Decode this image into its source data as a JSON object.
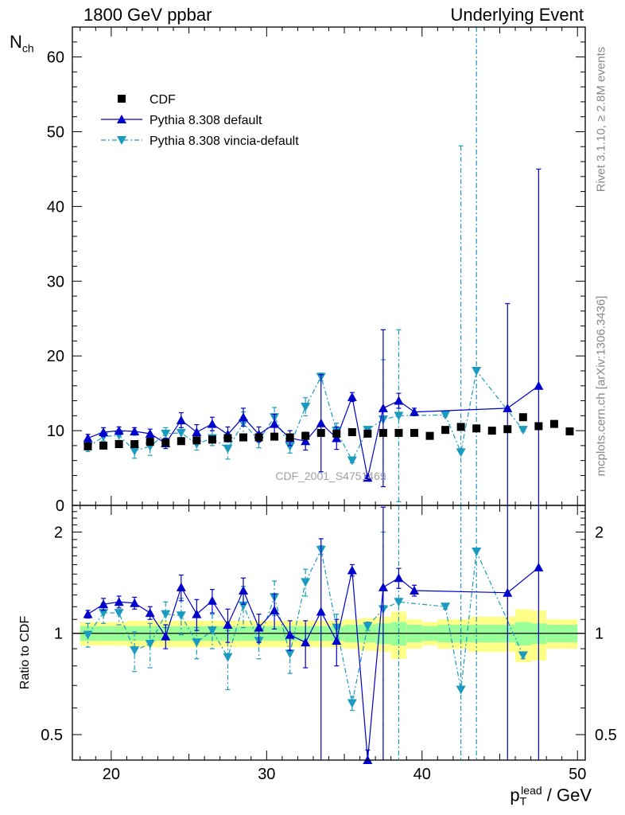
{
  "header": {
    "left": "1800 GeV ppbar",
    "right": "Underlying Event"
  },
  "side_text": {
    "rivet": "Rivet 3.1.10, ≥ 2.8M events",
    "mcplots": "mcplots.cern.ch [arXiv:1306.3436]"
  },
  "watermark": "CDF_2001_S4751469",
  "axis_text": {
    "top_ylabel_main": "N",
    "top_ylabel_sub": "ch",
    "bottom_ylabel": "Ratio to CDF",
    "xlabel": "p_T^lead / GeV"
  },
  "legend": [
    {
      "label": "CDF",
      "marker": "square",
      "color": "#000000"
    },
    {
      "label": "Pythia 8.308 default",
      "marker": "triangle-up",
      "color": "#0000cc",
      "line": "solid"
    },
    {
      "label": "Pythia 8.308 vincia-default",
      "marker": "triangle-down",
      "color": "#1a9bbf",
      "line": "dashdot"
    }
  ],
  "colors": {
    "cdf": "#000000",
    "default": "#0000cc",
    "vincia": "#1a9bbf",
    "band_inner": "#99ff99",
    "band_outer": "#ffff88"
  },
  "chart_data": [
    {
      "type": "scatter",
      "panel": "main",
      "xlim": [
        17.5,
        50.5
      ],
      "ylim": [
        0,
        64
      ],
      "yticks": [
        0,
        10,
        20,
        30,
        40,
        50,
        60
      ],
      "ylabel": "N_ch",
      "series": [
        {
          "name": "CDF",
          "x": [
            18.5,
            19.5,
            20.5,
            21.5,
            22.5,
            23.5,
            24.5,
            25.5,
            26.5,
            27.5,
            28.5,
            29.5,
            30.5,
            31.5,
            32.5,
            33.5,
            34.5,
            35.5,
            36.5,
            37.5,
            38.5,
            39.5,
            40.5,
            41.5,
            42.5,
            43.5,
            44.5,
            45.5,
            46.5,
            47.5,
            48.5,
            49.5
          ],
          "y": [
            7.9,
            8.0,
            8.2,
            8.2,
            8.5,
            8.4,
            8.6,
            8.7,
            8.8,
            9.0,
            9.1,
            9.1,
            9.2,
            9.1,
            9.3,
            9.7,
            9.6,
            9.8,
            9.6,
            9.7,
            9.7,
            9.7,
            9.3,
            10.1,
            10.5,
            10.3,
            10.0,
            10.2,
            11.8,
            10.6,
            10.9,
            9.9
          ]
        },
        {
          "name": "Pythia 8.308 default",
          "x": [
            18.5,
            19.5,
            20.5,
            21.5,
            22.5,
            23.5,
            24.5,
            25.5,
            26.5,
            27.5,
            28.5,
            29.5,
            30.5,
            31.5,
            32.5,
            33.5,
            34.5,
            35.5,
            36.5,
            37.5,
            38.5,
            39.5,
            45.5,
            47.5
          ],
          "y": [
            9.0,
            9.8,
            10.0,
            9.9,
            9.6,
            8.3,
            11.4,
            9.8,
            10.9,
            9.5,
            11.8,
            9.5,
            10.9,
            9.0,
            8.6,
            11.0,
            9.0,
            14.5,
            3.7,
            13.0,
            14.0,
            12.5,
            13.0,
            16.0
          ],
          "yerr": [
            0.5,
            0.6,
            0.5,
            0.5,
            0.6,
            0.7,
            1.0,
            1.0,
            0.9,
            1.0,
            1.2,
            1.0,
            1.3,
            1.0,
            1.2,
            6.5,
            1.5,
            0.6,
            0.3,
            10.5,
            1.0,
            0.5,
            14.0,
            29.0
          ]
        },
        {
          "name": "Pythia 8.308 vincia-default",
          "x": [
            18.5,
            19.5,
            20.5,
            21.5,
            22.5,
            23.5,
            24.5,
            25.5,
            26.5,
            27.5,
            28.5,
            29.5,
            30.5,
            31.5,
            32.5,
            33.5,
            34.5,
            35.5,
            36.5,
            37.5,
            38.5,
            41.5,
            42.5,
            43.5,
            46.5
          ],
          "y": [
            7.8,
            9.2,
            9.4,
            7.3,
            7.9,
            9.6,
            9.7,
            8.2,
            9.0,
            7.6,
            11.0,
            8.7,
            11.8,
            7.9,
            13.2,
            17.2,
            10.0,
            6.0,
            10.1,
            11.5,
            12.0,
            12.1,
            7.1,
            18.0,
            10.1
          ],
          "yerr": [
            0.6,
            0.6,
            0.7,
            1.0,
            1.2,
            0.8,
            1.2,
            0.8,
            1.0,
            1.4,
            1.5,
            1.0,
            1.3,
            0.9,
            1.2,
            0.5,
            1.0,
            0.3,
            0.3,
            8.0,
            11.5,
            0.2,
            41.0,
            50.0,
            0.2
          ]
        }
      ]
    },
    {
      "type": "scatter",
      "panel": "ratio",
      "xlim": [
        17.5,
        50.5
      ],
      "ylim": [
        0.42,
        2.4
      ],
      "yscale": "log",
      "yticks": [
        0.5,
        1,
        2
      ],
      "ylabel": "Ratio to CDF",
      "xticks": [
        20,
        30,
        40,
        50
      ],
      "xlabel": "p_T^lead / GeV",
      "bands": {
        "x": [
          18.5,
          19.5,
          20.5,
          21.5,
          22.5,
          23.5,
          24.5,
          25.5,
          26.5,
          27.5,
          28.5,
          29.5,
          30.5,
          31.5,
          32.5,
          33.5,
          34.5,
          35.5,
          36.5,
          37.5,
          38.5,
          39.5,
          40.5,
          41.5,
          42.5,
          43.5,
          44.5,
          45.5,
          46.5,
          47.5,
          48.5,
          49.5
        ],
        "inner": [
          0.05,
          0.05,
          0.05,
          0.05,
          0.05,
          0.05,
          0.05,
          0.05,
          0.05,
          0.05,
          0.05,
          0.05,
          0.05,
          0.05,
          0.05,
          0.05,
          0.05,
          0.06,
          0.06,
          0.07,
          0.08,
          0.06,
          0.05,
          0.06,
          0.06,
          0.06,
          0.06,
          0.06,
          0.08,
          0.07,
          0.06,
          0.06
        ],
        "outer": [
          0.08,
          0.08,
          0.08,
          0.09,
          0.09,
          0.09,
          0.09,
          0.09,
          0.09,
          0.09,
          0.09,
          0.09,
          0.09,
          0.09,
          0.09,
          0.09,
          0.09,
          0.1,
          0.11,
          0.12,
          0.16,
          0.1,
          0.08,
          0.1,
          0.1,
          0.12,
          0.12,
          0.12,
          0.18,
          0.17,
          0.1,
          0.1
        ]
      },
      "series": [
        {
          "name": "Pythia 8.308 default",
          "x": [
            18.5,
            19.5,
            20.5,
            21.5,
            22.5,
            23.5,
            24.5,
            25.5,
            26.5,
            27.5,
            28.5,
            29.5,
            30.5,
            31.5,
            32.5,
            33.5,
            34.5,
            35.5,
            36.5,
            37.5,
            38.5,
            39.5,
            45.5,
            47.5
          ],
          "y": [
            1.14,
            1.22,
            1.24,
            1.23,
            1.15,
            0.98,
            1.37,
            1.14,
            1.25,
            1.06,
            1.34,
            1.04,
            1.17,
            0.99,
            0.94,
            1.16,
            0.95,
            1.54,
            0.42,
            1.37,
            1.46,
            1.34,
            1.32,
            1.57
          ],
          "yerr": [
            0.03,
            0.05,
            0.05,
            0.05,
            0.05,
            0.08,
            0.12,
            0.12,
            0.1,
            0.12,
            0.12,
            0.1,
            0.14,
            0.1,
            0.15,
            0.75,
            0.15,
            0.06,
            0.03,
            1.0,
            0.1,
            0.05,
            1.4,
            2.7
          ]
        },
        {
          "name": "Pythia 8.308 vincia-default",
          "x": [
            18.5,
            19.5,
            20.5,
            21.5,
            22.5,
            23.5,
            24.5,
            25.5,
            26.5,
            27.5,
            28.5,
            29.5,
            30.5,
            31.5,
            32.5,
            33.5,
            34.5,
            35.5,
            36.5,
            37.5,
            38.5,
            41.5,
            42.5,
            43.5,
            46.5
          ],
          "y": [
            0.99,
            1.15,
            1.15,
            0.89,
            0.93,
            1.14,
            1.13,
            0.94,
            1.02,
            0.85,
            1.21,
            0.95,
            1.28,
            0.87,
            1.42,
            1.77,
            1.04,
            0.62,
            1.05,
            1.18,
            1.24,
            1.2,
            0.68,
            1.75,
            0.86
          ],
          "yerr": [
            0.08,
            0.08,
            0.09,
            0.12,
            0.14,
            0.1,
            0.14,
            0.1,
            0.12,
            0.17,
            0.17,
            0.11,
            0.15,
            0.11,
            0.13,
            0.05,
            0.1,
            0.03,
            0.03,
            0.82,
            1.2,
            0.02,
            3.9,
            4.8,
            0.02
          ]
        }
      ]
    }
  ]
}
